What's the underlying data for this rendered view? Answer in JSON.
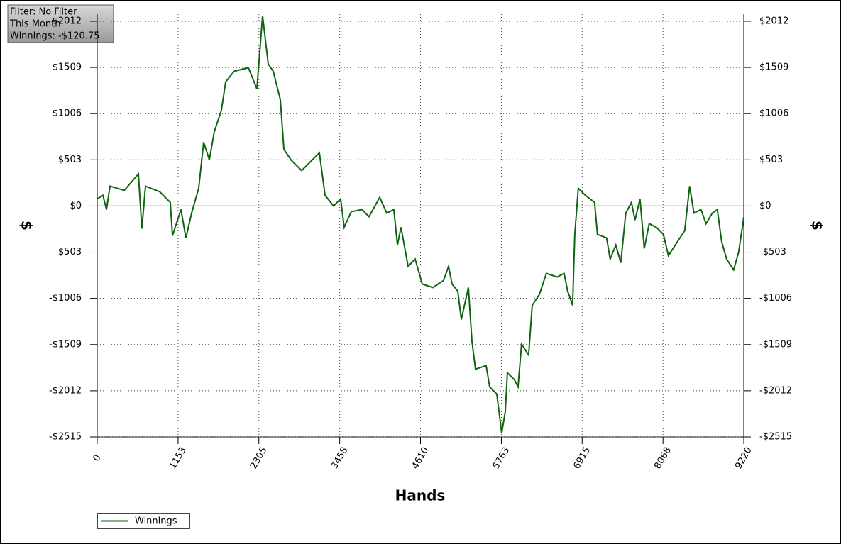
{
  "filter_box": {
    "lines": [
      "Filter: No Filter",
      "This Month",
      "Winnings: -$120.75"
    ]
  },
  "chart_data": {
    "type": "line",
    "x_label": "Hands",
    "y_label": "$",
    "y2_label": "$",
    "xlim": [
      0,
      9220
    ],
    "xticks": [
      0,
      1153,
      2305,
      3458,
      4610,
      5763,
      6915,
      8068,
      9220
    ],
    "ylim": [
      -2515,
      2089
    ],
    "yticks": [
      {
        "value": -2515,
        "label": "-$2515"
      },
      {
        "value": -2012,
        "label": "-$2012"
      },
      {
        "value": -1509,
        "label": "-$1509"
      },
      {
        "value": -1006,
        "label": "-$1006"
      },
      {
        "value": -503,
        "label": "-$503"
      },
      {
        "value": 0,
        "label": "$0"
      },
      {
        "value": 503,
        "label": "$503"
      },
      {
        "value": 1006,
        "label": "$1006"
      },
      {
        "value": 1509,
        "label": "$1509"
      },
      {
        "value": 2012,
        "label": "$2012"
      }
    ],
    "grid": true,
    "legend": "bottom-left",
    "x": [
      0,
      81,
      132,
      182,
      385,
      587,
      637,
      688,
      891,
      1042,
      1073,
      1194,
      1265,
      1346,
      1447,
      1518,
      1599,
      1670,
      1771,
      1832,
      1953,
      2156,
      2277,
      2308,
      2358,
      2439,
      2510,
      2611,
      2662,
      2763,
      2915,
      3067,
      3168,
      3249,
      3370,
      3471,
      3522,
      3623,
      3775,
      3876,
      4028,
      4129,
      4230,
      4281,
      4332,
      4433,
      4534,
      4635,
      4787,
      4939,
      5010,
      5060,
      5141,
      5192,
      5293,
      5343,
      5394,
      5546,
      5596,
      5697,
      5768,
      5819,
      5849,
      5950,
      6001,
      6051,
      6152,
      6203,
      6304,
      6405,
      6557,
      6658,
      6708,
      6779,
      6810,
      6860,
      6961,
      7092,
      7133,
      7264,
      7314,
      7395,
      7466,
      7537,
      7618,
      7669,
      7740,
      7801,
      7871,
      7973,
      8074,
      8145,
      8276,
      8377,
      8448,
      8509,
      8610,
      8681,
      8772,
      8843,
      8904,
      8975,
      9076,
      9147,
      9220
    ],
    "series": [
      {
        "name": "Winnings",
        "color": "#0f6410",
        "values": [
          77,
          116,
          -39,
          216,
          170,
          348,
          -247,
          216,
          155,
          39,
          -324,
          -39,
          -348,
          -77,
          193,
          695,
          502,
          811,
          1043,
          1352,
          1468,
          1506,
          1275,
          1584,
          2070,
          1545,
          1468,
          1159,
          618,
          502,
          386,
          502,
          579,
          116,
          0,
          77,
          -232,
          -62,
          -39,
          -116,
          93,
          -77,
          -39,
          -425,
          -232,
          -657,
          -579,
          -850,
          -888,
          -811,
          -657,
          -850,
          -927,
          -1236,
          -888,
          -1468,
          -1777,
          -1738,
          -1970,
          -2047,
          -2472,
          -2240,
          -1816,
          -1893,
          -1970,
          -1506,
          -1622,
          -1082,
          -966,
          -734,
          -773,
          -734,
          -927,
          -1082,
          -309,
          193,
          116,
          39,
          -309,
          -348,
          -579,
          -425,
          -618,
          -77,
          39,
          -154,
          77,
          -463,
          -193,
          -232,
          -309,
          -541,
          -386,
          -270,
          216,
          -77,
          -39,
          -193,
          -77,
          -39,
          -386,
          -579,
          -695,
          -502,
          -121
        ]
      }
    ]
  }
}
